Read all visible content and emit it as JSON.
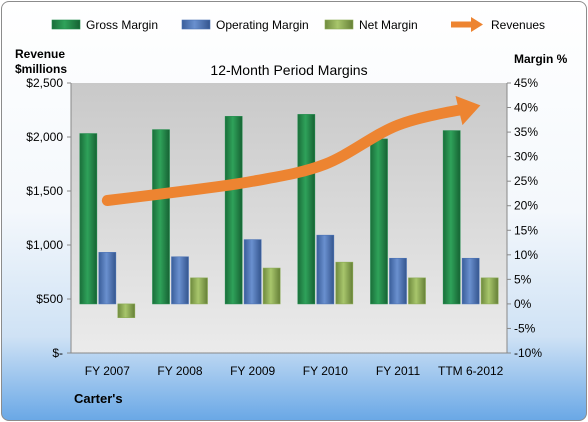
{
  "chart_data": {
    "type": "bar",
    "title": "12-Month Period Margins",
    "company": "Carter's",
    "ylabel_left": [
      "Revenue",
      "$millions"
    ],
    "ylabel_right": "Margin %",
    "categories": [
      "FY 2007",
      "FY 2008",
      "FY 2009",
      "FY 2010",
      "FY 2011",
      "TTM 6-2012"
    ],
    "left_axis": {
      "min": 0,
      "max": 2500,
      "ticks": [
        0,
        500,
        1000,
        1500,
        2000,
        2500
      ],
      "tick_labels": [
        "$-",
        "$500",
        "$1,000",
        "$1,500",
        "$2,000",
        "$2,500"
      ]
    },
    "right_axis": {
      "min": -10,
      "max": 45,
      "ticks": [
        -10,
        -5,
        0,
        5,
        10,
        15,
        20,
        25,
        30,
        35,
        40,
        45
      ],
      "tick_labels": [
        "-10%",
        "-5%",
        "0%",
        "5%",
        "10%",
        "15%",
        "20%",
        "25%",
        "30%",
        "35%",
        "40%",
        "45%"
      ]
    },
    "series": [
      {
        "name": "Gross Margin",
        "type": "bar",
        "axis": "right",
        "color": "#1f8a4a",
        "values": [
          34.7,
          35.5,
          38.2,
          38.6,
          33.6,
          35.3
        ]
      },
      {
        "name": "Operating Margin",
        "type": "bar",
        "axis": "right",
        "color": "#4a72b5",
        "values": [
          10.5,
          9.6,
          13.1,
          14.0,
          9.3,
          9.3
        ]
      },
      {
        "name": "Net Margin",
        "type": "bar",
        "axis": "right",
        "color": "#8aaa52",
        "values": [
          -2.8,
          5.3,
          7.3,
          8.5,
          5.3,
          5.3
        ]
      },
      {
        "name": "Revenues",
        "type": "line",
        "axis": "left",
        "color": "#ed8431",
        "values": [
          1412,
          1495,
          1590,
          1749,
          2110,
          2271
        ]
      }
    ],
    "legend_position": "top",
    "grid": false
  }
}
